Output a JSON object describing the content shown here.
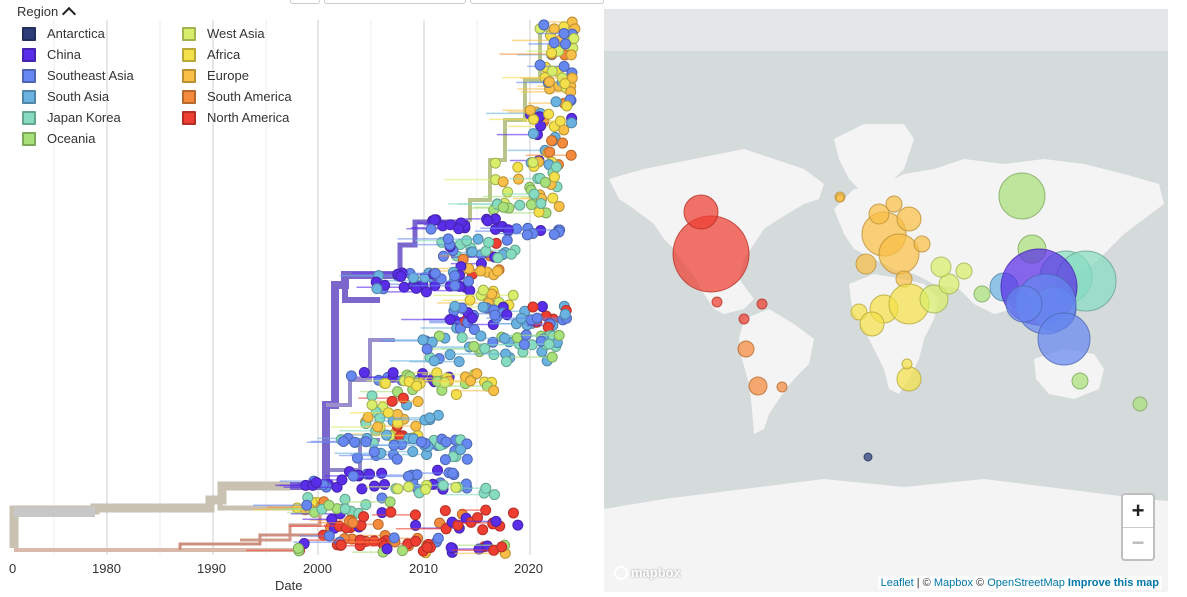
{
  "legend": {
    "title": "Region",
    "items": [
      {
        "label": "Antarctica",
        "color": "#2c3e7a"
      },
      {
        "label": "China",
        "color": "#5a2ee8"
      },
      {
        "label": "Southeast Asia",
        "color": "#6688f0"
      },
      {
        "label": "South Asia",
        "color": "#6ab3e0"
      },
      {
        "label": "Japan Korea",
        "color": "#86dcc0"
      },
      {
        "label": "Oceania",
        "color": "#a8e07a"
      },
      {
        "label": "West Asia",
        "color": "#d8ee6a"
      },
      {
        "label": "Africa",
        "color": "#f4e04a"
      },
      {
        "label": "Europe",
        "color": "#f9bf47"
      },
      {
        "label": "South America",
        "color": "#f48b3c"
      },
      {
        "label": "North America",
        "color": "#ee3e32"
      }
    ]
  },
  "tree": {
    "x_axis_title": "Date",
    "x_ticks": [
      "0",
      "1980",
      "1990",
      "2000",
      "2010",
      "2020"
    ]
  },
  "map": {
    "logo": "mapbox",
    "zoom_in": "+",
    "zoom_out": "−",
    "attribution": {
      "leaflet": "Leaflet",
      "sep1": " | © ",
      "mapbox": "Mapbox",
      "sep2": " © ",
      "osm": "OpenStreetMap",
      "improve": "Improve this map"
    }
  }
}
